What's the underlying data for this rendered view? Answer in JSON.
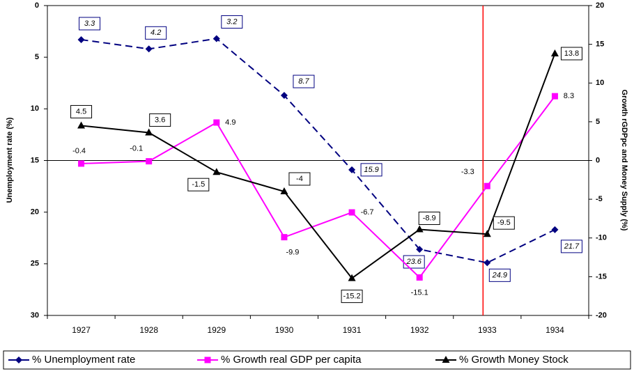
{
  "chart_data": {
    "type": "line",
    "categories": [
      "1927",
      "1928",
      "1929",
      "1930",
      "1931",
      "1932",
      "1933",
      "1934"
    ],
    "y_label": "Unemployment rate (%)",
    "y2_label": "Growth rGDPpc and Money Supply (%)",
    "ylim": [
      30,
      0
    ],
    "yticks": [
      0,
      5,
      10,
      15,
      20,
      25,
      30
    ],
    "y2lim": [
      -20,
      20
    ],
    "y2ticks": [
      -20,
      -15,
      -10,
      -5,
      0,
      5,
      10,
      15,
      20
    ],
    "hline": {
      "axis": "y2",
      "value": 0,
      "color": "#000000"
    },
    "vline": {
      "category_index": 6,
      "color": "#ff0000"
    },
    "series": [
      {
        "name": "% Unemployment rate",
        "color": "#000080",
        "marker": "diamond",
        "dashed": true,
        "label_box": "#000080",
        "label_italic": true,
        "values": [
          3.3,
          4.2,
          3.2,
          8.7,
          15.9,
          23.6,
          24.9,
          21.7
        ]
      },
      {
        "name": "% Growth real GDP per capita",
        "color": "#ff00ff",
        "marker": "square",
        "axis": "y2",
        "values": [
          -0.4,
          -0.1,
          4.9,
          -9.9,
          -6.7,
          -15.1,
          -3.3,
          8.3
        ]
      },
      {
        "name": "% Growth Money Stock",
        "color": "#000000",
        "marker": "triangle",
        "axis": "y2",
        "label_box": "#000000",
        "values": [
          4.5,
          3.6,
          -1.5,
          -4.0,
          -15.2,
          -8.9,
          -9.5,
          13.8
        ]
      }
    ]
  }
}
